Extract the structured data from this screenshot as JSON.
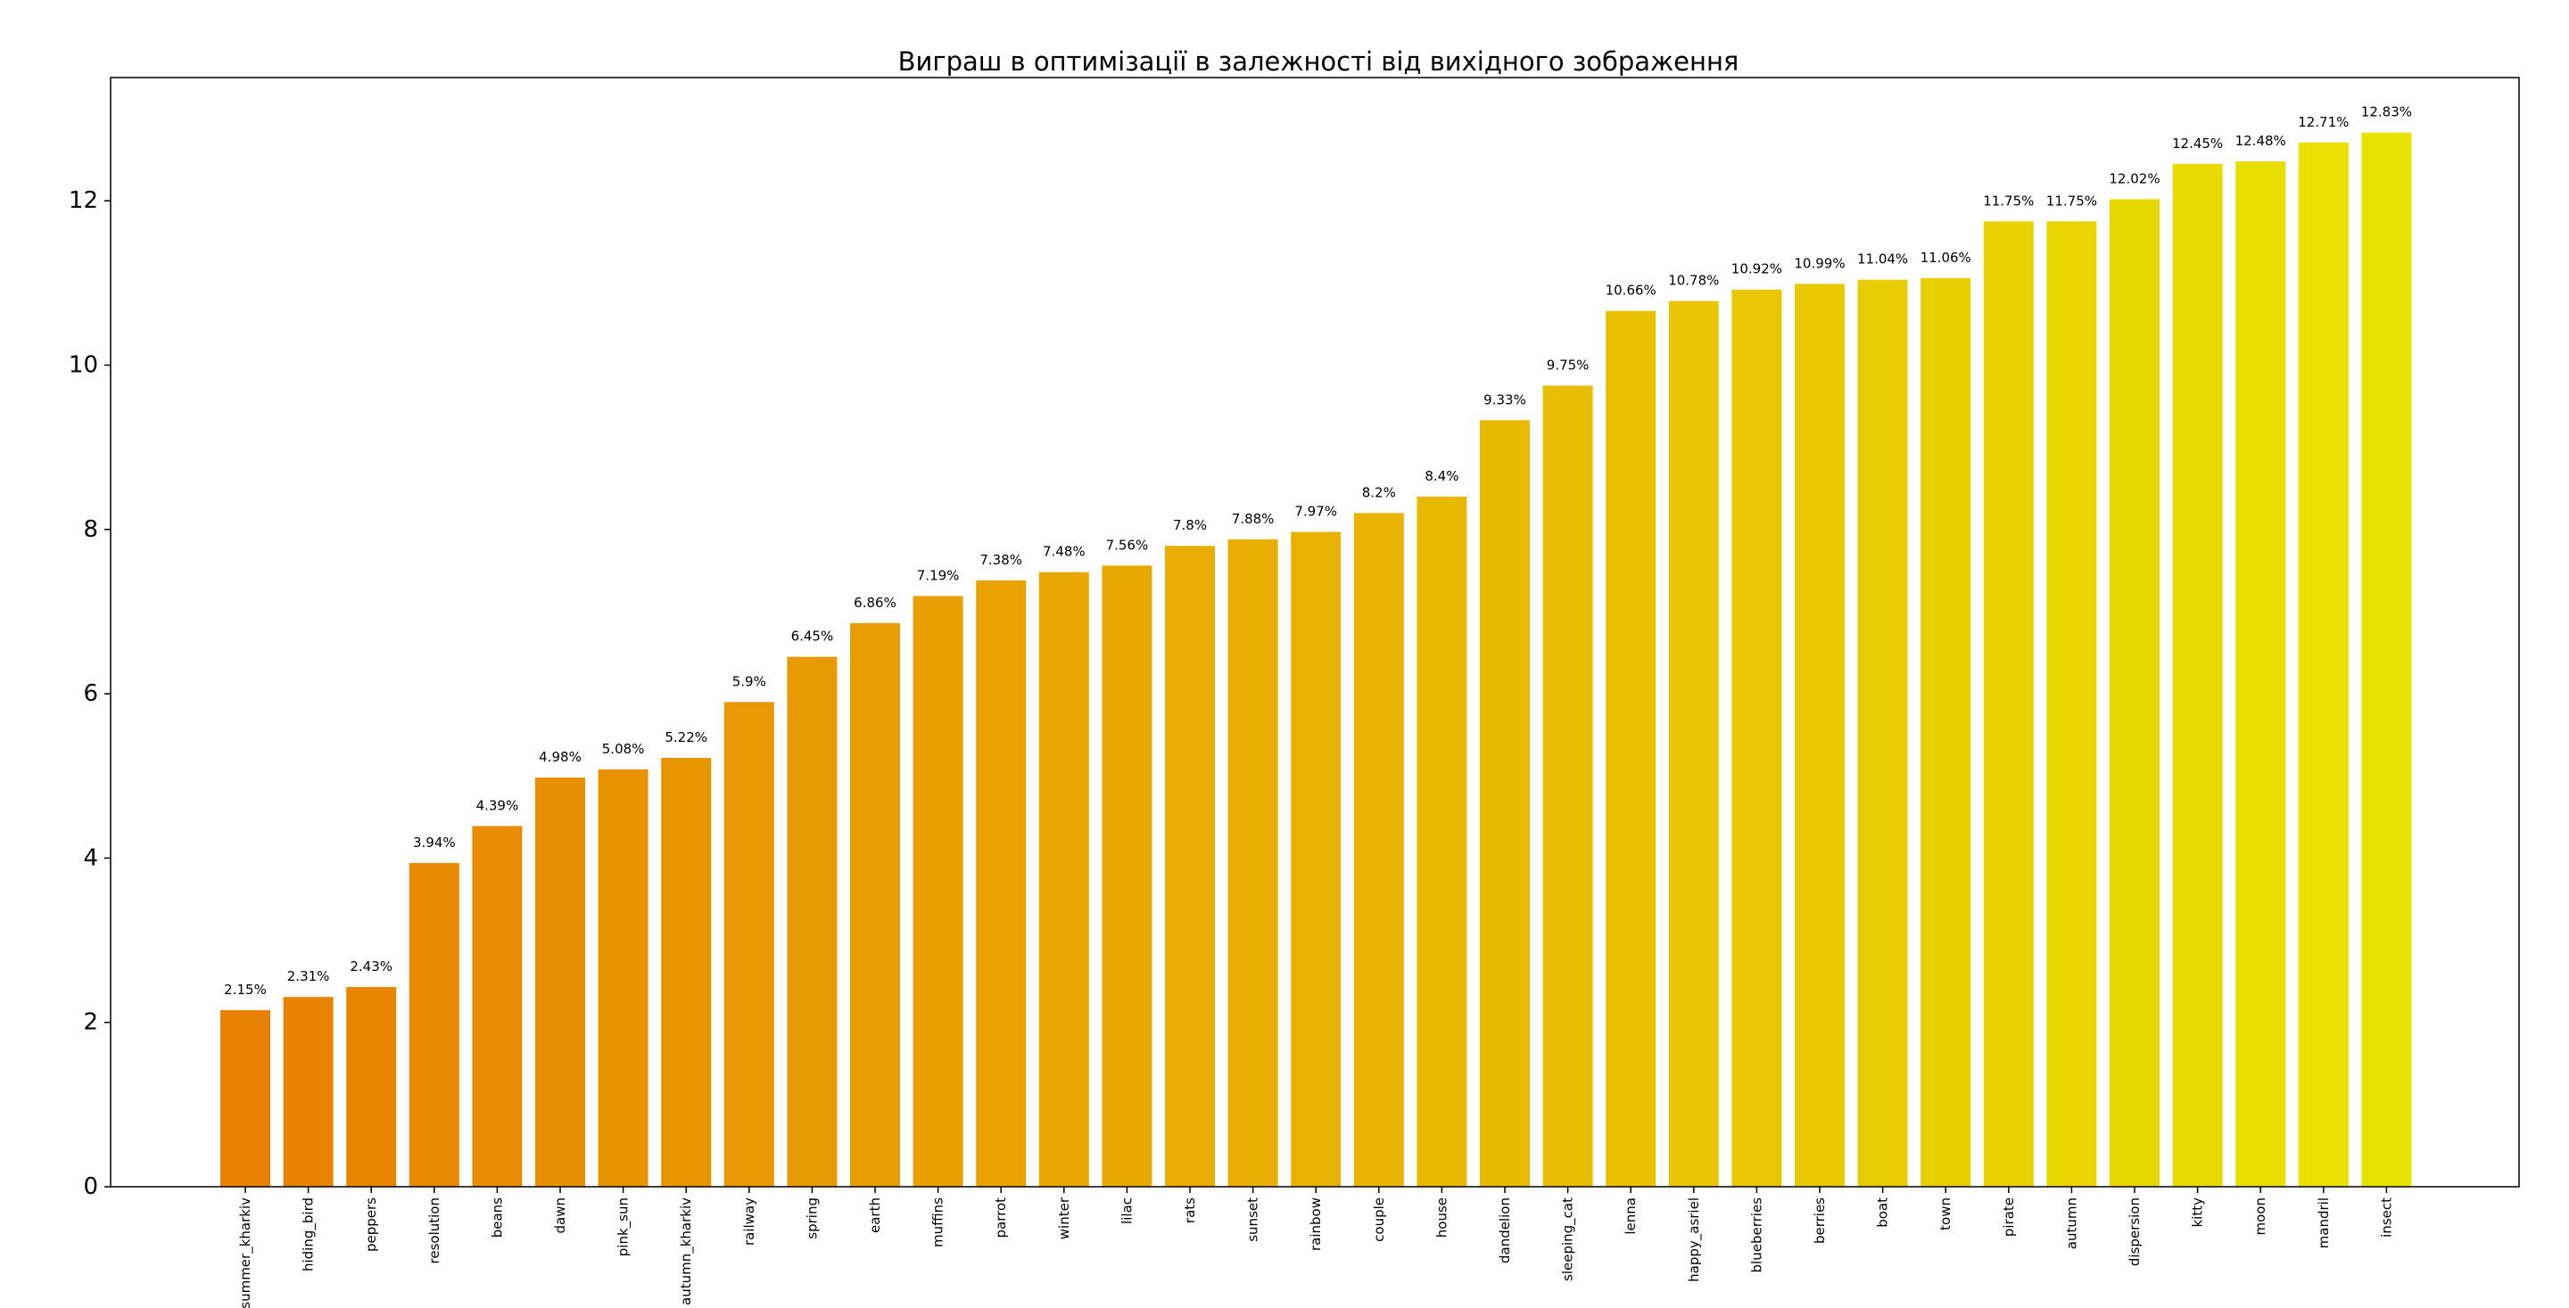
{
  "chart_data": {
    "type": "bar",
    "title": "Виграш в оптимізації в залежності від вихідного зображення",
    "xlabel": "",
    "ylabel": "",
    "ylim": [
      0,
      13.5
    ],
    "yticks": [
      "0",
      "2",
      "4",
      "6",
      "8",
      "10",
      "12"
    ],
    "grid": false,
    "legend": "none",
    "color_start": "#e88002",
    "color_end": "#e8e402",
    "categories": [
      "summer_kharkiv",
      "hiding_bird",
      "peppers",
      "resolution",
      "beans",
      "dawn",
      "pink_sun",
      "autumn_kharkiv",
      "railway",
      "spring",
      "earth",
      "muffins",
      "parrot",
      "winter",
      "lilac",
      "rats",
      "sunset",
      "rainbow",
      "couple",
      "house",
      "dandelion",
      "sleeping_cat",
      "lenna",
      "happy_asriel",
      "blueberries",
      "berries",
      "boat",
      "town",
      "pirate",
      "autumn",
      "dispersion",
      "kitty",
      "moon",
      "mandril",
      "insect"
    ],
    "values": [
      2.15,
      2.31,
      2.43,
      3.94,
      4.39,
      4.98,
      5.08,
      5.22,
      5.9,
      6.45,
      6.86,
      7.19,
      7.38,
      7.48,
      7.56,
      7.8,
      7.88,
      7.97,
      8.2,
      8.4,
      9.33,
      9.75,
      10.66,
      10.78,
      10.92,
      10.99,
      11.04,
      11.06,
      11.75,
      11.75,
      12.02,
      12.45,
      12.48,
      12.71,
      12.83
    ],
    "data_labels": [
      "2.15%",
      "2.31%",
      "2.43%",
      "3.94%",
      "4.39%",
      "4.98%",
      "5.08%",
      "5.22%",
      "5.9%",
      "6.45%",
      "6.86%",
      "7.19%",
      "7.38%",
      "7.48%",
      "7.56%",
      "7.8%",
      "7.88%",
      "7.97%",
      "8.2%",
      "8.4%",
      "9.33%",
      "9.75%",
      "10.66%",
      "10.78%",
      "10.92%",
      "10.99%",
      "11.04%",
      "11.06%",
      "11.75%",
      "11.75%",
      "12.02%",
      "12.45%",
      "12.48%",
      "12.71%",
      "12.83%"
    ]
  }
}
